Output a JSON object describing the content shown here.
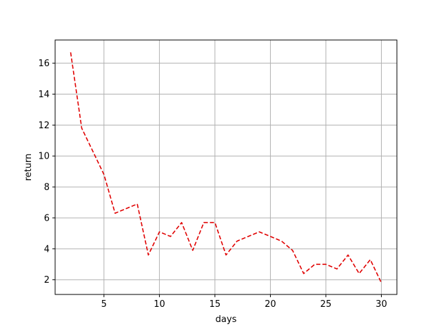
{
  "chart_data": {
    "type": "line",
    "title": "",
    "xlabel": "days",
    "ylabel": "return",
    "xlim": [
      0.6,
      31.4
    ],
    "ylim": [
      1.05,
      17.5
    ],
    "xticks": [
      5,
      10,
      15,
      20,
      25,
      30
    ],
    "yticks": [
      2,
      4,
      6,
      8,
      10,
      12,
      14,
      16
    ],
    "grid": true,
    "legend": "none",
    "series": [
      {
        "color": "#e00000",
        "line_style": "dashed",
        "x": [
          2,
          3,
          4,
          5,
          6,
          7,
          8,
          9,
          10,
          11,
          12,
          13,
          14,
          15,
          16,
          17,
          18,
          19,
          20,
          21,
          22,
          23,
          24,
          25,
          26,
          27,
          28,
          29,
          30
        ],
        "y": [
          16.7,
          11.8,
          10.3,
          8.8,
          6.3,
          6.6,
          6.9,
          3.6,
          5.1,
          4.8,
          5.7,
          3.9,
          5.7,
          5.7,
          3.6,
          4.5,
          4.8,
          5.1,
          4.8,
          4.5,
          3.9,
          2.4,
          3.0,
          3.0,
          2.7,
          3.6,
          2.4,
          3.3,
          1.8
        ]
      }
    ]
  }
}
